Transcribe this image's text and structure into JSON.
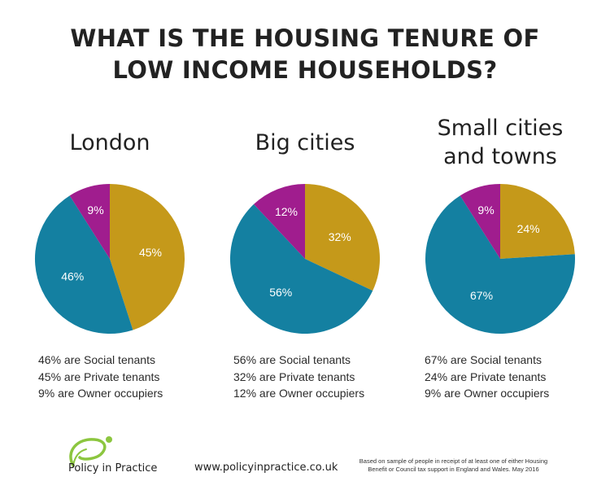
{
  "title": {
    "line1": "WHAT IS THE HOUSING TENURE OF",
    "line2": "LOW INCOME HOUSEHOLDS?"
  },
  "colors": {
    "social": "#1480a1",
    "private": "#c5991a",
    "owner": "#a01d8e"
  },
  "panels": [
    {
      "title_lines": [
        "London"
      ],
      "stats": [
        "46% are Social tenants",
        "45% are Private tenants",
        "9% are Owner occupiers"
      ]
    },
    {
      "title_lines": [
        "Big cities"
      ],
      "stats": [
        "56% are Social tenants",
        "32% are Private tenants",
        "12% are Owner occupiers"
      ]
    },
    {
      "title_lines": [
        "Small cities",
        "and towns"
      ],
      "stats": [
        "67% are Social tenants",
        "24% are Private tenants",
        "9% are Owner occupiers"
      ]
    }
  ],
  "chart_data": [
    {
      "type": "pie",
      "title": "London",
      "slices": [
        {
          "name": "Private tenants",
          "value": 45,
          "label": "45%"
        },
        {
          "name": "Social tenants",
          "value": 46,
          "label": "46%"
        },
        {
          "name": "Owner occupiers",
          "value": 9,
          "label": "9%"
        }
      ]
    },
    {
      "type": "pie",
      "title": "Big cities",
      "slices": [
        {
          "name": "Private tenants",
          "value": 32,
          "label": "32%"
        },
        {
          "name": "Social tenants",
          "value": 56,
          "label": "56%"
        },
        {
          "name": "Owner occupiers",
          "value": 12,
          "label": "12%"
        }
      ]
    },
    {
      "type": "pie",
      "title": "Small cities and towns",
      "slices": [
        {
          "name": "Private tenants",
          "value": 24,
          "label": "24%"
        },
        {
          "name": "Social tenants",
          "value": 67,
          "label": "67%"
        },
        {
          "name": "Owner occupiers",
          "value": 9,
          "label": "9%"
        }
      ]
    }
  ],
  "footer": {
    "brand": "Policy in Practice",
    "url": "www.policyinpractice.co.uk",
    "note_line1": "Based on sample of people in receipt of at least one of either Housing",
    "note_line2": "Benefit or Council tax support  in England and Wales. May 2016"
  }
}
